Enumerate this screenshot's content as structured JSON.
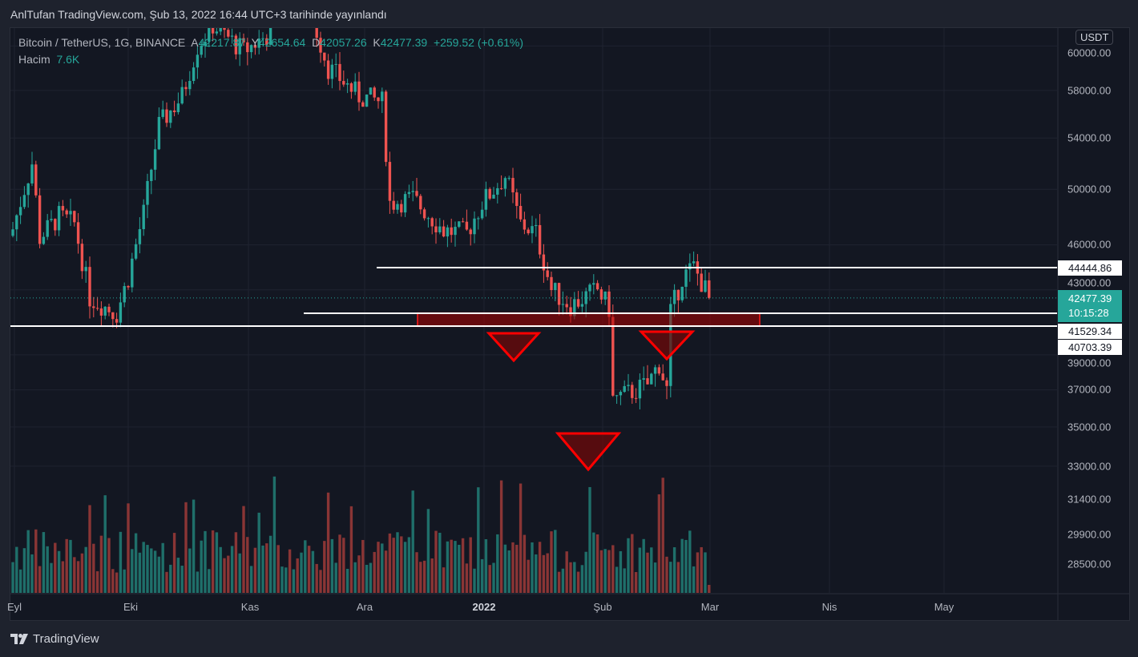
{
  "header": {
    "title": "AnlTufan TradingView.com, Şub 13, 2022 16:44 UTC+3 tarihinde yayınlandı"
  },
  "legend": {
    "symbol": "Bitcoin / TetherUS, 1G, BINANCE",
    "open_label": "A",
    "open": "42217.87",
    "high_label": "Y",
    "high": "42654.64",
    "low_label": "D",
    "low": "42057.26",
    "close_label": "K",
    "close": "42477.39",
    "change": "+259.52 (+0.61%)",
    "volume_label": "Hacim",
    "volume": "7.6K"
  },
  "currency": "USDT",
  "price_axis": [
    "60000.00",
    "58000.00",
    "54000.00",
    "50000.00",
    "46000.00",
    "43000.00",
    "39000.00",
    "37000.00",
    "35000.00",
    "33000.00",
    "31400.00",
    "29900.00",
    "28500.00"
  ],
  "time_axis": [
    "Eyl",
    "Eki",
    "Kas",
    "Ara",
    "2022",
    "Şub",
    "Mar",
    "Nis",
    "May"
  ],
  "price_tags": {
    "line1": "44444.86",
    "line2": "41529.34",
    "line3": "40703.39",
    "current": "42477.39",
    "countdown": "10:15:28"
  },
  "footer": {
    "brand": "TradingView"
  },
  "colors": {
    "up": "#26a69a",
    "down": "#ef5350",
    "annotation": "#ff0000",
    "line": "#ffffff"
  },
  "chart_data": {
    "type": "candlestick",
    "title": "Bitcoin / TetherUS, 1G, BINANCE",
    "scale": "log",
    "x_unit": "days since 2021-09-01",
    "close_keypoints": [
      [
        0,
        47100
      ],
      [
        5,
        52000
      ],
      [
        7,
        46500
      ],
      [
        12,
        48000
      ],
      [
        16,
        47500
      ],
      [
        20,
        42500
      ],
      [
        27,
        41500
      ],
      [
        30,
        43800
      ],
      [
        34,
        48200
      ],
      [
        38,
        55000
      ],
      [
        44,
        57500
      ],
      [
        48,
        62000
      ],
      [
        52,
        64000
      ],
      [
        60,
        61500
      ],
      [
        66,
        63000
      ],
      [
        70,
        66000
      ],
      [
        75,
        65500
      ],
      [
        78,
        64500
      ],
      [
        82,
        60000
      ],
      [
        90,
        57500
      ],
      [
        96,
        57000
      ],
      [
        98,
        49000
      ],
      [
        104,
        49300
      ],
      [
        112,
        47000
      ],
      [
        118,
        46800
      ],
      [
        122,
        49000
      ],
      [
        128,
        51000
      ],
      [
        132,
        47500
      ],
      [
        136,
        46800
      ],
      [
        140,
        43000
      ],
      [
        145,
        42000
      ],
      [
        152,
        43000
      ],
      [
        155,
        41800
      ],
      [
        156,
        36500
      ],
      [
        160,
        36800
      ],
      [
        165,
        37300
      ],
      [
        168,
        38500
      ],
      [
        170,
        37000
      ],
      [
        171,
        41500
      ],
      [
        174,
        43800
      ],
      [
        177,
        44500
      ],
      [
        180,
        43000
      ],
      [
        181,
        42477
      ]
    ],
    "horizontal_levels": [
      44444.86,
      41529.34,
      40703.39
    ],
    "zone": [
      40703.39,
      41529.34
    ],
    "last_close": 42477.39
  }
}
